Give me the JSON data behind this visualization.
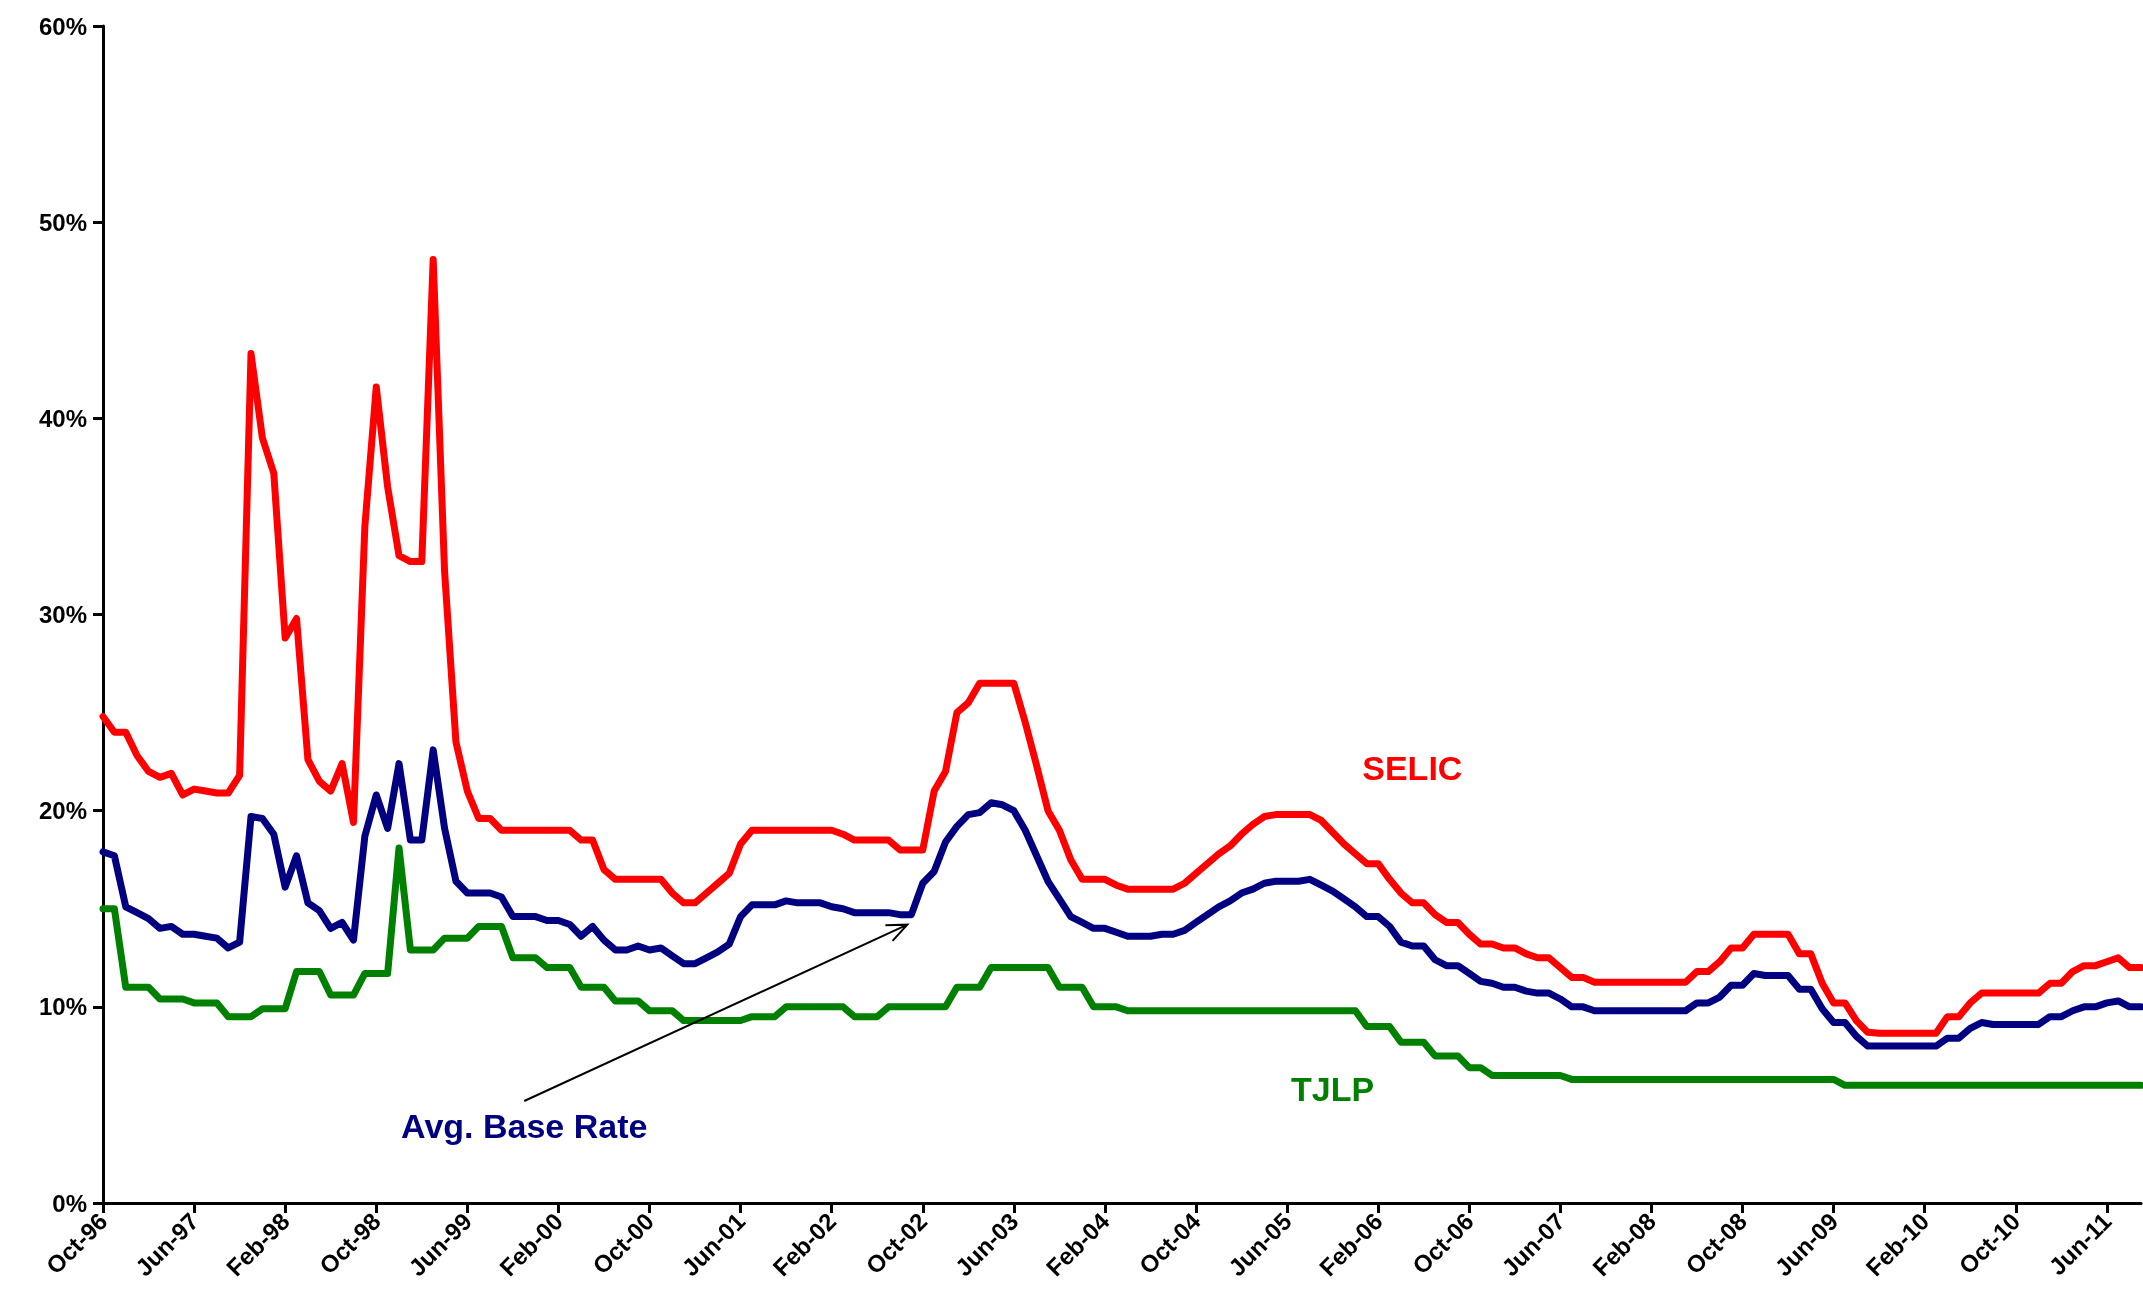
{
  "chart_data": {
    "type": "line",
    "categories": [
      "Oct-96",
      null,
      null,
      null,
      null,
      null,
      null,
      null,
      "Jun-97",
      null,
      null,
      null,
      null,
      null,
      null,
      null,
      "Feb-98",
      null,
      null,
      null,
      null,
      null,
      null,
      null,
      "Oct-98",
      null,
      null,
      null,
      null,
      null,
      null,
      null,
      "Jun-99",
      null,
      null,
      null,
      null,
      null,
      null,
      null,
      "Feb-00",
      null,
      null,
      null,
      null,
      null,
      null,
      null,
      "Oct-00",
      null,
      null,
      null,
      null,
      null,
      null,
      null,
      "Jun-01",
      null,
      null,
      null,
      null,
      null,
      null,
      null,
      "Feb-02",
      null,
      null,
      null,
      null,
      null,
      null,
      null,
      "Oct-02",
      null,
      null,
      null,
      null,
      null,
      null,
      null,
      "Jun-03",
      null,
      null,
      null,
      null,
      null,
      null,
      null,
      "Feb-04",
      null,
      null,
      null,
      null,
      null,
      null,
      null,
      "Oct-04",
      null,
      null,
      null,
      null,
      null,
      null,
      null,
      "Jun-05",
      null,
      null,
      null,
      null,
      null,
      null,
      null,
      "Feb-06",
      null,
      null,
      null,
      null,
      null,
      null,
      null,
      "Oct-06",
      null,
      null,
      null,
      null,
      null,
      null,
      null,
      "Jun-07",
      null,
      null,
      null,
      null,
      null,
      null,
      null,
      "Feb-08",
      null,
      null,
      null,
      null,
      null,
      null,
      null,
      "Oct-08",
      null,
      null,
      null,
      null,
      null,
      null,
      null,
      "Jun-09",
      null,
      null,
      null,
      null,
      null,
      null,
      null,
      "Feb-10",
      null,
      null,
      null,
      null,
      null,
      null,
      null,
      "Oct-10",
      null,
      null,
      null,
      null,
      null,
      null,
      null,
      "Jun-11",
      null,
      null,
      null
    ],
    "series": [
      {
        "name": "SELIC",
        "color": "#ff0000",
        "values": [
          24.8,
          24.0,
          24.0,
          22.8,
          22.0,
          21.7,
          21.9,
          20.8,
          21.1,
          21.0,
          20.9,
          20.9,
          21.8,
          43.3,
          39.0,
          37.2,
          28.8,
          29.8,
          22.6,
          21.5,
          21.0,
          22.4,
          19.4,
          34.5,
          41.6,
          36.5,
          33.0,
          32.7,
          32.7,
          48.1,
          32.2,
          23.5,
          21.0,
          19.6,
          19.6,
          19.0,
          19.0,
          19.0,
          19.0,
          19.0,
          19.0,
          19.0,
          18.5,
          18.5,
          17.0,
          16.5,
          16.5,
          16.5,
          16.5,
          16.5,
          15.8,
          15.3,
          15.3,
          15.8,
          16.3,
          16.8,
          18.3,
          19.0,
          19.0,
          19.0,
          19.0,
          19.0,
          19.0,
          19.0,
          19.0,
          18.8,
          18.5,
          18.5,
          18.5,
          18.5,
          18.0,
          18.0,
          18.0,
          21.0,
          22.0,
          25.0,
          25.5,
          26.5,
          26.5,
          26.5,
          26.5,
          24.5,
          22.3,
          20.0,
          19.0,
          17.5,
          16.5,
          16.5,
          16.5,
          16.2,
          16.0,
          16.0,
          16.0,
          16.0,
          16.0,
          16.3,
          16.8,
          17.3,
          17.8,
          18.2,
          18.8,
          19.3,
          19.7,
          19.8,
          19.8,
          19.8,
          19.8,
          19.5,
          18.9,
          18.3,
          17.8,
          17.3,
          17.3,
          16.5,
          15.8,
          15.3,
          15.3,
          14.7,
          14.3,
          14.3,
          13.7,
          13.2,
          13.2,
          13.0,
          13.0,
          12.7,
          12.5,
          12.5,
          12.0,
          11.5,
          11.5,
          11.25,
          11.25,
          11.25,
          11.25,
          11.25,
          11.25,
          11.25,
          11.25,
          11.25,
          11.8,
          11.8,
          12.3,
          13.0,
          13.0,
          13.7,
          13.7,
          13.7,
          13.7,
          12.7,
          12.7,
          11.2,
          10.2,
          10.2,
          9.3,
          8.7,
          8.65,
          8.65,
          8.65,
          8.65,
          8.65,
          8.65,
          9.5,
          9.5,
          10.2,
          10.7,
          10.7,
          10.7,
          10.7,
          10.7,
          10.7,
          11.2,
          11.2,
          11.8,
          12.1,
          12.1,
          12.3,
          12.5,
          12.0,
          12.0
        ]
      },
      {
        "name": "Avg. Base Rate",
        "color": "#000080",
        "values": [
          17.9,
          17.7,
          15.1,
          14.8,
          14.5,
          14.0,
          14.1,
          13.7,
          13.7,
          13.6,
          13.5,
          13.0,
          13.3,
          19.7,
          19.6,
          18.8,
          16.1,
          17.7,
          15.3,
          14.9,
          14.0,
          14.3,
          13.4,
          18.7,
          20.8,
          19.1,
          22.4,
          18.5,
          18.5,
          23.1,
          19.1,
          16.4,
          15.8,
          15.8,
          15.8,
          15.6,
          14.6,
          14.6,
          14.6,
          14.4,
          14.4,
          14.2,
          13.6,
          14.1,
          13.4,
          12.9,
          12.9,
          13.1,
          12.9,
          13.0,
          12.6,
          12.2,
          12.2,
          12.5,
          12.8,
          13.2,
          14.6,
          15.2,
          15.2,
          15.2,
          15.4,
          15.3,
          15.3,
          15.3,
          15.1,
          15.0,
          14.8,
          14.8,
          14.8,
          14.8,
          14.7,
          14.7,
          16.3,
          16.9,
          18.4,
          19.2,
          19.8,
          19.9,
          20.4,
          20.3,
          20.0,
          19.0,
          17.7,
          16.4,
          15.5,
          14.6,
          14.3,
          14.0,
          14.0,
          13.8,
          13.6,
          13.6,
          13.6,
          13.7,
          13.7,
          13.9,
          14.3,
          14.7,
          15.1,
          15.4,
          15.8,
          16.0,
          16.3,
          16.4,
          16.4,
          16.4,
          16.5,
          16.2,
          15.9,
          15.5,
          15.1,
          14.6,
          14.6,
          14.1,
          13.3,
          13.1,
          13.1,
          12.4,
          12.1,
          12.1,
          11.7,
          11.3,
          11.2,
          11.0,
          11.0,
          10.8,
          10.7,
          10.7,
          10.4,
          10.0,
          10.0,
          9.8,
          9.8,
          9.8,
          9.8,
          9.8,
          9.8,
          9.8,
          9.8,
          9.8,
          10.2,
          10.2,
          10.5,
          11.1,
          11.1,
          11.7,
          11.6,
          11.6,
          11.6,
          10.9,
          10.9,
          9.9,
          9.2,
          9.2,
          8.5,
          8.0,
          8.0,
          8.0,
          8.0,
          8.0,
          8.0,
          8.0,
          8.4,
          8.4,
          8.9,
          9.2,
          9.1,
          9.1,
          9.1,
          9.1,
          9.1,
          9.5,
          9.5,
          9.8,
          10.0,
          10.0,
          10.2,
          10.3,
          10.0,
          10.0
        ]
      },
      {
        "name": "TJLP",
        "color": "#008000",
        "values": [
          15.0,
          15.0,
          11.0,
          11.0,
          11.0,
          10.4,
          10.4,
          10.4,
          10.2,
          10.2,
          10.2,
          9.5,
          9.5,
          9.5,
          9.9,
          9.9,
          9.9,
          11.8,
          11.8,
          11.8,
          10.6,
          10.6,
          10.6,
          11.7,
          11.7,
          11.7,
          18.1,
          12.9,
          12.9,
          12.9,
          13.5,
          13.5,
          13.5,
          14.1,
          14.1,
          14.1,
          12.5,
          12.5,
          12.5,
          12.0,
          12.0,
          12.0,
          11.0,
          11.0,
          11.0,
          10.3,
          10.3,
          10.3,
          9.8,
          9.8,
          9.8,
          9.3,
          9.3,
          9.3,
          9.3,
          9.3,
          9.3,
          9.5,
          9.5,
          9.5,
          10.0,
          10.0,
          10.0,
          10.0,
          10.0,
          10.0,
          9.5,
          9.5,
          9.5,
          10.0,
          10.0,
          10.0,
          10.0,
          10.0,
          10.0,
          11.0,
          11.0,
          11.0,
          12.0,
          12.0,
          12.0,
          12.0,
          12.0,
          12.0,
          11.0,
          11.0,
          11.0,
          10.0,
          10.0,
          10.0,
          9.8,
          9.8,
          9.8,
          9.8,
          9.8,
          9.8,
          9.8,
          9.8,
          9.8,
          9.8,
          9.8,
          9.8,
          9.8,
          9.8,
          9.8,
          9.8,
          9.8,
          9.8,
          9.8,
          9.8,
          9.8,
          9.0,
          9.0,
          9.0,
          8.2,
          8.2,
          8.2,
          7.5,
          7.5,
          7.5,
          6.9,
          6.9,
          6.5,
          6.5,
          6.5,
          6.5,
          6.5,
          6.5,
          6.5,
          6.3,
          6.3,
          6.3,
          6.3,
          6.3,
          6.3,
          6.3,
          6.3,
          6.3,
          6.3,
          6.3,
          6.3,
          6.3,
          6.3,
          6.3,
          6.3,
          6.3,
          6.3,
          6.3,
          6.3,
          6.3,
          6.3,
          6.3,
          6.3,
          6.0,
          6.0,
          6.0,
          6.0,
          6.0,
          6.0,
          6.0,
          6.0,
          6.0,
          6.0,
          6.0,
          6.0,
          6.0,
          6.0,
          6.0,
          6.0,
          6.0,
          6.0,
          6.0,
          6.0,
          6.0,
          6.0,
          6.0,
          6.0,
          6.0,
          6.0,
          6.0
        ]
      }
    ],
    "ylim": [
      0,
      60
    ],
    "yticks": [
      {
        "value": 0,
        "label": "0%"
      },
      {
        "value": 10,
        "label": "10%"
      },
      {
        "value": 20,
        "label": "20%"
      },
      {
        "value": 30,
        "label": "30%"
      },
      {
        "value": 40,
        "label": "40%"
      },
      {
        "value": 50,
        "label": "50%"
      },
      {
        "value": 60,
        "label": "60%"
      }
    ],
    "grid": false,
    "legend": false,
    "marker": "none",
    "line_style": "solid"
  }
}
